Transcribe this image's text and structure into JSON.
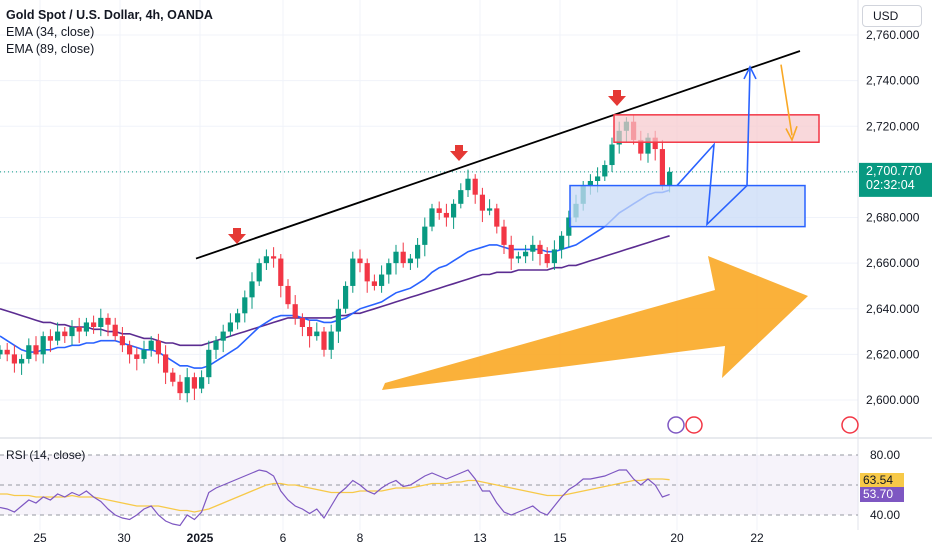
{
  "legend": {
    "symbol": "Gold Spot / U.S. Dollar, 4h, OANDA",
    "ema34": "EMA (34, close)",
    "ema89": "EMA (89, close)"
  },
  "currency": "USD",
  "price_axis": [
    "2,760.000",
    "2,740.000",
    "2,720.000",
    "2,700.000",
    "2,680.000",
    "2,660.000",
    "2,640.000",
    "2,620.000",
    "2,600.000"
  ],
  "last_price": {
    "value": "2,700.770",
    "countdown": "02:32:04",
    "color": "#089981"
  },
  "rsi": {
    "label": "RSI (14, close)",
    "axis": [
      "80.00",
      "40.00"
    ],
    "ma_value": "63.54",
    "rsi_value": "53.70",
    "rsi_color": "#7e57c2",
    "ma_color": "#f7c948"
  },
  "time_axis": [
    "25",
    "30",
    "2025",
    "6",
    "8",
    "13",
    "15",
    "20",
    "22"
  ],
  "colors": {
    "up": "#089981",
    "down": "#f23645",
    "ema34": "#2962ff",
    "ema89": "#5b2c91",
    "arrow": "#f9a825",
    "zone_sell": "#f7c7cc",
    "zone_buy": "#c9dbf7",
    "signal": "#e53935"
  },
  "chart_data": {
    "type": "candlestick",
    "title": "Gold Spot / U.S. Dollar, 4h, OANDA",
    "ylim": [
      2590,
      2768
    ],
    "close": [
      2622,
      2620,
      2616,
      2618,
      2624,
      2620,
      2628,
      2626,
      2630,
      2628,
      2632,
      2630,
      2634,
      2632,
      2636,
      2633,
      2628,
      2624,
      2620,
      2618,
      2622,
      2626,
      2620,
      2612,
      2608,
      2603,
      2610,
      2605,
      2610,
      2622,
      2626,
      2630,
      2634,
      2638,
      2645,
      2652,
      2660,
      2663,
      2662,
      2650,
      2642,
      2636,
      2632,
      2628,
      2630,
      2622,
      2630,
      2640,
      2650,
      2662,
      2660,
      2652,
      2650,
      2655,
      2660,
      2665,
      2660,
      2662,
      2668,
      2676,
      2684,
      2682,
      2680,
      2686,
      2692,
      2697,
      2690,
      2683,
      2684,
      2676,
      2668,
      2662,
      2663,
      2665,
      2668,
      2664,
      2660,
      2666,
      2672,
      2680,
      2686,
      2694,
      2696,
      2698,
      2703,
      2712,
      2718,
      2722,
      2714,
      2708,
      2715,
      2710,
      2694,
      2700
    ],
    "ema34": [
      2628,
      2626,
      2624,
      2622,
      2621,
      2621,
      2622,
      2622,
      2623,
      2623,
      2624,
      2624,
      2625,
      2625,
      2626,
      2626,
      2626,
      2625,
      2624,
      2623,
      2622,
      2622,
      2621,
      2619,
      2617,
      2615,
      2615,
      2614,
      2614,
      2615,
      2617,
      2619,
      2621,
      2623,
      2626,
      2629,
      2632,
      2634,
      2636,
      2637,
      2637,
      2637,
      2636,
      2635,
      2635,
      2634,
      2634,
      2635,
      2636,
      2638,
      2640,
      2641,
      2642,
      2643,
      2645,
      2647,
      2648,
      2649,
      2651,
      2653,
      2656,
      2658,
      2659,
      2661,
      2663,
      2665,
      2666,
      2667,
      2668,
      2668,
      2667,
      2666,
      2666,
      2666,
      2666,
      2666,
      2665,
      2665,
      2666,
      2667,
      2668,
      2670,
      2672,
      2674,
      2676,
      2679,
      2682,
      2684,
      2686,
      2688,
      2690,
      2691,
      2691,
      2692
    ],
    "ema89": [
      2640,
      2639,
      2638,
      2637,
      2636,
      2635,
      2634,
      2634,
      2633,
      2633,
      2632,
      2632,
      2632,
      2631,
      2631,
      2630,
      2630,
      2629,
      2629,
      2628,
      2627,
      2627,
      2626,
      2625,
      2625,
      2624,
      2624,
      2624,
      2624,
      2625,
      2626,
      2627,
      2628,
      2629,
      2630,
      2631,
      2632,
      2633,
      2634,
      2635,
      2636,
      2636,
      2636,
      2636,
      2636,
      2636,
      2636,
      2637,
      2637,
      2638,
      2638,
      2639,
      2640,
      2641,
      2642,
      2643,
      2644,
      2645,
      2646,
      2647,
      2648,
      2649,
      2650,
      2651,
      2652,
      2653,
      2654,
      2655,
      2655,
      2656,
      2656,
      2656,
      2657,
      2657,
      2657,
      2657,
      2657,
      2658,
      2658,
      2659,
      2659,
      2660,
      2661,
      2662,
      2663,
      2664,
      2665,
      2666,
      2667,
      2668,
      2669,
      2670,
      2671,
      2672
    ],
    "rsi": [
      45,
      44,
      42,
      46,
      50,
      48,
      52,
      50,
      54,
      52,
      55,
      53,
      56,
      52,
      49,
      44,
      40,
      38,
      37,
      40,
      44,
      46,
      40,
      36,
      34,
      33,
      40,
      37,
      42,
      55,
      58,
      60,
      62,
      64,
      66,
      68,
      70,
      69,
      66,
      56,
      50,
      46,
      44,
      41,
      44,
      38,
      46,
      54,
      58,
      63,
      60,
      56,
      54,
      58,
      61,
      63,
      59,
      60,
      63,
      66,
      68,
      66,
      64,
      66,
      68,
      70,
      64,
      56,
      56,
      48,
      42,
      40,
      42,
      44,
      46,
      42,
      40,
      46,
      52,
      57,
      60,
      64,
      64,
      65,
      66,
      68,
      70,
      70,
      64,
      60,
      64,
      60,
      52,
      53.7
    ],
    "rsi_ma": [
      54,
      54,
      53,
      53,
      53,
      52,
      52,
      52,
      52,
      52,
      53,
      52,
      52,
      52,
      51,
      50,
      49,
      48,
      47,
      46,
      46,
      46,
      46,
      45,
      44,
      43,
      43,
      42,
      43,
      44,
      46,
      48,
      50,
      52,
      54,
      56,
      58,
      60,
      61,
      61,
      60,
      60,
      59,
      58,
      57,
      56,
      55,
      55,
      55,
      55,
      56,
      56,
      56,
      56,
      57,
      58,
      58,
      58,
      59,
      60,
      61,
      61,
      61,
      62,
      62,
      63,
      63,
      62,
      61,
      60,
      59,
      58,
      57,
      56,
      55,
      54,
      53,
      53,
      53,
      54,
      55,
      56,
      57,
      58,
      59,
      60,
      61,
      62,
      63,
      63,
      64,
      64,
      64,
      63.54
    ],
    "trendline": {
      "from": 2662,
      "to": 2753
    },
    "sell_zone": [
      2713,
      2725
    ],
    "buy_zone": [
      2676,
      2694
    ],
    "signal_markers": 3,
    "projection": [
      2694,
      2712,
      2677,
      2694,
      2746
    ]
  }
}
